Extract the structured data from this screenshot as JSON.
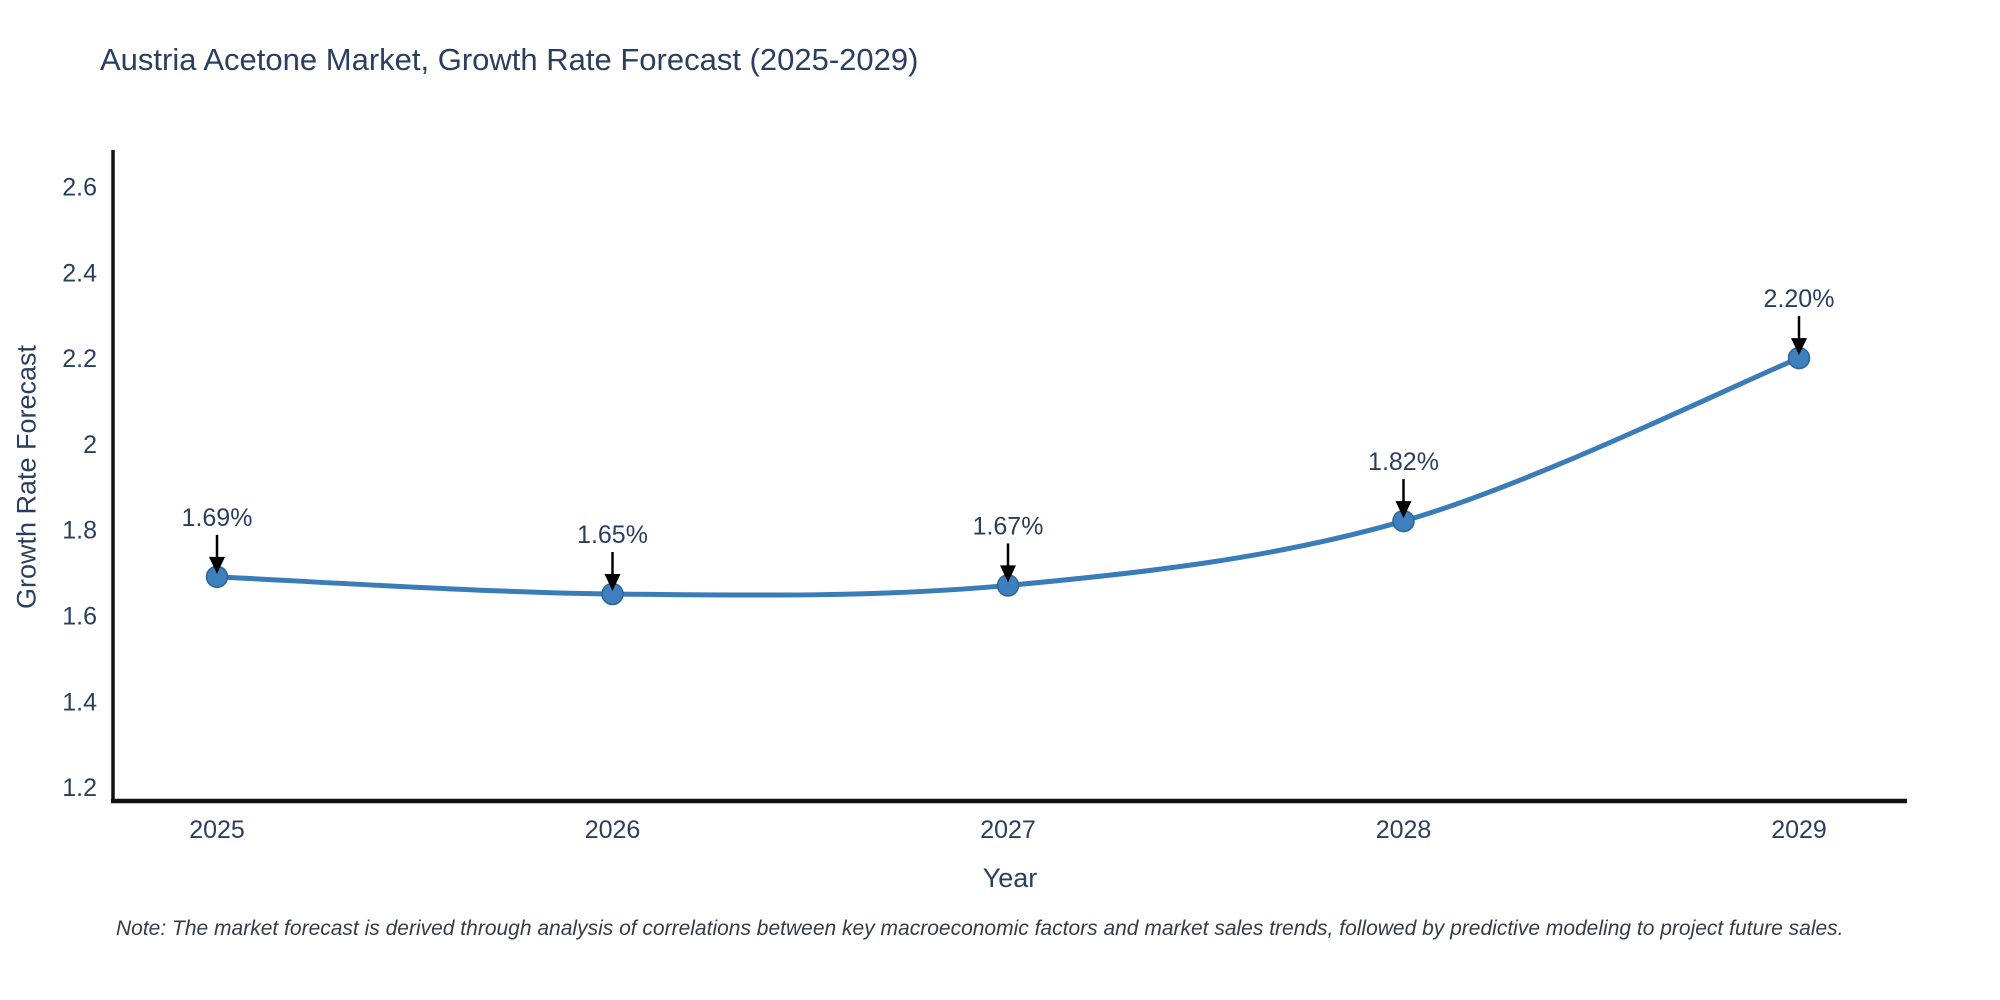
{
  "note": "Note: The market forecast is derived through analysis of correlations between key macroeconomic factors and market sales trends, followed by predictive modeling to project future sales.",
  "chart_data": {
    "type": "line",
    "title": "Austria Acetone Market, Growth Rate Forecast (2025-2029)",
    "xlabel": "Year",
    "ylabel": "Growth Rate Forecast",
    "categories": [
      "2025",
      "2026",
      "2027",
      "2028",
      "2029"
    ],
    "series": [
      {
        "name": "Growth Rate Forecast",
        "values": [
          1.69,
          1.65,
          1.67,
          1.82,
          2.2
        ]
      }
    ],
    "point_labels": [
      "1.69%",
      "1.65%",
      "1.67%",
      "1.82%",
      "2.20%"
    ],
    "y_ticks": [
      1.2,
      1.4,
      1.6,
      1.8,
      2,
      2.2,
      2.4,
      2.6
    ],
    "y_tick_labels": [
      "1.2",
      "1.4",
      "1.6",
      "1.8",
      "2",
      "2.2",
      "2.4",
      "2.6"
    ],
    "ylim": [
      1.1675,
      2.685
    ],
    "grid": false,
    "legend": "none",
    "line_shape": "spline",
    "annotations": "arrow-down-to-each-point",
    "colors": {
      "line": "#3a7cb8",
      "marker_fill": "#3e80bd",
      "marker_stroke": "#2e6396",
      "arrow": "#000000",
      "axis": "#111111",
      "text": "#2a3f5f",
      "background": "#ffffff"
    }
  }
}
